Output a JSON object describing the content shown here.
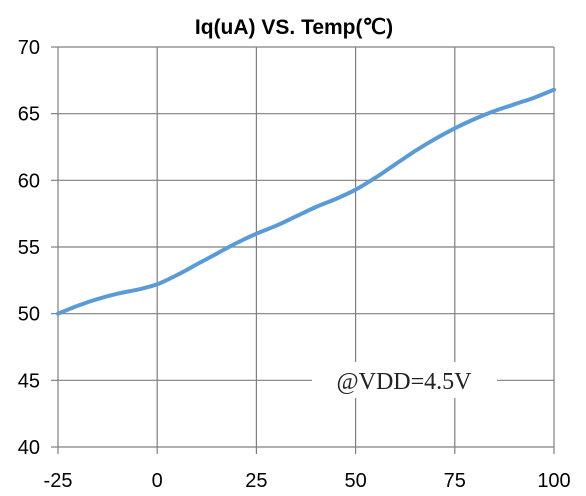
{
  "chart_data": {
    "type": "line",
    "title": "Iq(uA) VS. Temp(℃)",
    "xlabel": "",
    "ylabel": "",
    "xlim": [
      -25,
      100
    ],
    "ylim": [
      40,
      70
    ],
    "xticks": [
      "-25",
      "0",
      "25",
      "50",
      "75",
      "100"
    ],
    "yticks": [
      "40",
      "45",
      "50",
      "55",
      "60",
      "65",
      "70"
    ],
    "grid": true,
    "annotation": "@VDD=4.5V",
    "series": [
      {
        "color": "#5b9bd5",
        "x": [
          -25,
          -20,
          -15,
          -10,
          -5,
          0,
          5,
          10,
          15,
          20,
          25,
          30,
          35,
          40,
          45,
          50,
          55,
          60,
          65,
          70,
          75,
          80,
          85,
          90,
          95,
          100
        ],
        "y": [
          50.0,
          50.6,
          51.1,
          51.5,
          51.8,
          52.2,
          52.9,
          53.7,
          54.5,
          55.3,
          56.0,
          56.6,
          57.3,
          58.0,
          58.6,
          59.3,
          60.2,
          61.2,
          62.2,
          63.1,
          63.9,
          64.6,
          65.2,
          65.7,
          66.2,
          66.8
        ]
      }
    ]
  }
}
